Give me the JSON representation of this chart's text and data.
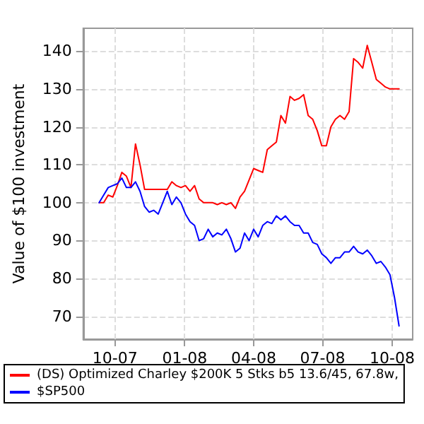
{
  "chart_data": {
    "type": "line",
    "ylabel": "Value of $100 investment",
    "x": [
      "2007-09-10",
      "2007-09-16",
      "2007-09-22",
      "2007-09-28",
      "2007-10-04",
      "2007-10-10",
      "2007-10-16",
      "2007-10-22",
      "2007-10-28",
      "2007-11-03",
      "2007-11-09",
      "2007-11-15",
      "2007-11-21",
      "2007-11-27",
      "2007-12-03",
      "2007-12-09",
      "2007-12-15",
      "2007-12-21",
      "2007-12-27",
      "2008-01-02",
      "2008-01-08",
      "2008-01-14",
      "2008-01-20",
      "2008-01-26",
      "2008-02-01",
      "2008-02-07",
      "2008-02-13",
      "2008-02-19",
      "2008-02-25",
      "2008-03-02",
      "2008-03-08",
      "2008-03-14",
      "2008-03-20",
      "2008-03-26",
      "2008-04-01",
      "2008-04-07",
      "2008-04-13",
      "2008-04-19",
      "2008-04-25",
      "2008-05-01",
      "2008-05-07",
      "2008-05-13",
      "2008-05-19",
      "2008-05-25",
      "2008-05-31",
      "2008-06-06",
      "2008-06-12",
      "2008-06-18",
      "2008-06-24",
      "2008-06-30",
      "2008-07-06",
      "2008-07-12",
      "2008-07-18",
      "2008-07-24",
      "2008-07-30",
      "2008-08-05",
      "2008-08-11",
      "2008-08-17",
      "2008-08-23",
      "2008-08-29",
      "2008-09-04",
      "2008-09-10",
      "2008-09-16",
      "2008-09-22",
      "2008-09-28",
      "2008-10-04",
      "2008-10-10"
    ],
    "series": [
      {
        "name": "(DS) Optimized Charley $200K 5 Stks b5 13.6/45, 67.8w,",
        "color": "#ff0000",
        "values": [
          100,
          100,
          102,
          101.5,
          104.5,
          108,
          107,
          104,
          115.5,
          110,
          103.5,
          103.5,
          103.5,
          103.5,
          103.5,
          103.5,
          105.5,
          104.5,
          104,
          104.5,
          103,
          104.5,
          101,
          100,
          100,
          100,
          99.5,
          100,
          99.5,
          100,
          98.5,
          101.5,
          103,
          106,
          109,
          108.5,
          108,
          114,
          115,
          116,
          123,
          121,
          128,
          127,
          127.5,
          128.5,
          123,
          122,
          119,
          115,
          115,
          120,
          122,
          123,
          122,
          124,
          138,
          137,
          135.5,
          141.5,
          137,
          132.5,
          131.5,
          130.5,
          130,
          130,
          130
        ]
      },
      {
        "name": "$SP500",
        "color": "#0000ff",
        "values": [
          100,
          102,
          104,
          104.5,
          105,
          106.5,
          104,
          104,
          105.5,
          103,
          99,
          97.5,
          98,
          97,
          100,
          103,
          99.5,
          101.5,
          100,
          97,
          95,
          94,
          90,
          90.5,
          93,
          91,
          92,
          91.5,
          93,
          90.5,
          87,
          88,
          92,
          90,
          93,
          91,
          94,
          95,
          94.5,
          96.5,
          95.5,
          96.5,
          95,
          94,
          94,
          92,
          92,
          89.5,
          89,
          86.5,
          85.5,
          84,
          85.5,
          85.5,
          87,
          87,
          88.5,
          87,
          86.5,
          87.5,
          86,
          84,
          84.5,
          83,
          81,
          75,
          67.5
        ]
      }
    ],
    "xlim": [
      "2007-08-20",
      "2008-10-28"
    ],
    "xticks": [
      {
        "value": "2007-10-01",
        "label": "10-07"
      },
      {
        "value": "2008-01-01",
        "label": "01-08"
      },
      {
        "value": "2008-04-01",
        "label": "04-08"
      },
      {
        "value": "2008-07-01",
        "label": "07-08"
      },
      {
        "value": "2008-10-01",
        "label": "10-08"
      }
    ],
    "ylim": [
      64,
      146
    ],
    "yticks": [
      70,
      80,
      90,
      100,
      110,
      120,
      130,
      140
    ],
    "grid": true,
    "legend": "bottom",
    "marker": "none",
    "line_style": "solid"
  }
}
